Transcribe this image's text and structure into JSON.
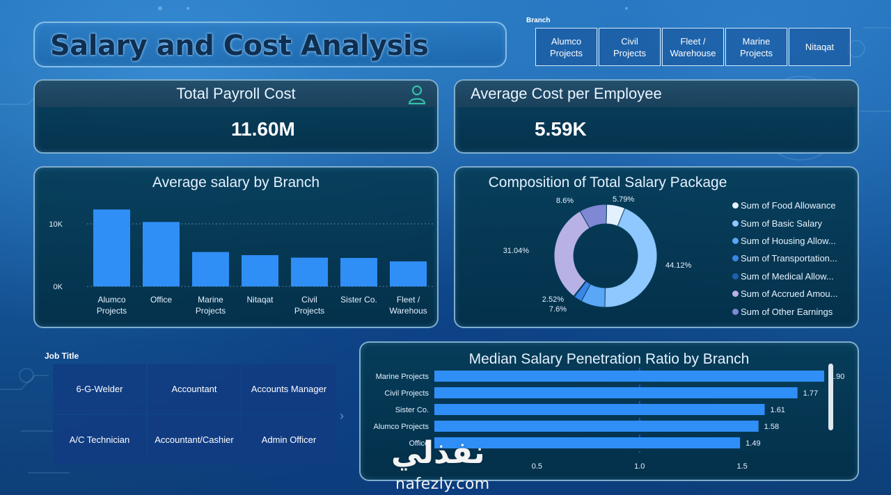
{
  "header": {
    "title": "Salary and Cost Analysis"
  },
  "branch_slicer": {
    "label": "Branch",
    "options": [
      "Alumco\nProjects",
      "Civil\nProjects",
      "Fleet /\nWarehouse",
      "Marine\nProjects",
      "Nitaqat"
    ]
  },
  "kpis": {
    "payroll": {
      "title": "Total Payroll Cost",
      "value": "11.60M",
      "icon": "person-icon"
    },
    "avg_cost": {
      "title": "Average Cost per Employee",
      "value": "5.59K"
    }
  },
  "job_slicer": {
    "label": "Job Title",
    "options": [
      "6-G-Welder",
      "Accountant",
      "Accounts Manager",
      "A/C Technician",
      "Accountant/Cashier",
      "Admin Officer"
    ],
    "next_icon": "chevron-right-icon"
  },
  "watermark": {
    "arabic": "نفذلي",
    "latin": "nafezly.com"
  },
  "colors": {
    "bar": "#2f8ff7",
    "panel_border": "#aad7f5",
    "donut": [
      "#e3f1ff",
      "#8fc7ff",
      "#5aa6f7",
      "#3a86e8",
      "#1e5fae",
      "#b8b1e6",
      "#7f88d4"
    ]
  },
  "chart_data": [
    {
      "type": "bar",
      "title": "Average salary by Branch",
      "categories": [
        "Alumco\nProjects",
        "Office",
        "Marine\nProjects",
        "Nitaqat",
        "Civil\nProjects",
        "Sister Co.",
        "Fleet /\nWarehous"
      ],
      "values": [
        12300,
        10300,
        5500,
        5000,
        4600,
        4550,
        4000
      ],
      "yticks": [
        "0K",
        "10K"
      ],
      "ylim": [
        0,
        14000
      ],
      "grid": true
    },
    {
      "type": "pie",
      "title": "Composition of Total Salary Package",
      "labels": [
        "Sum of Food Allowance",
        "Sum of Basic Salary",
        "Sum of Housing Allow...",
        "Sum of Transportation...",
        "Sum of Medical Allow...",
        "Sum of Accrued Amou...",
        "Sum of Other Earnings"
      ],
      "values": [
        5.79,
        44.12,
        7.6,
        2.52,
        0.33,
        31.04,
        8.6
      ],
      "data_labels": [
        "5.79%",
        "44.12%",
        "7.6%",
        "2.52%",
        "",
        "31.04%",
        "8.6%"
      ],
      "legend": "right"
    },
    {
      "type": "bar",
      "orientation": "horizontal",
      "title": "Median Salary Penetration Ratio by Branch",
      "categories": [
        "Marine Projects",
        "Civil Projects",
        "Sister Co.",
        "Alumco Projects",
        "Office"
      ],
      "values": [
        1.9,
        1.77,
        1.61,
        1.58,
        1.49
      ],
      "value_labels": [
        "1.90",
        "1.77",
        "1.61",
        "1.58",
        "1.49"
      ],
      "xticks": [
        "0.5",
        "1.0",
        "1.5"
      ],
      "xlim": [
        0,
        1.9
      ]
    }
  ]
}
